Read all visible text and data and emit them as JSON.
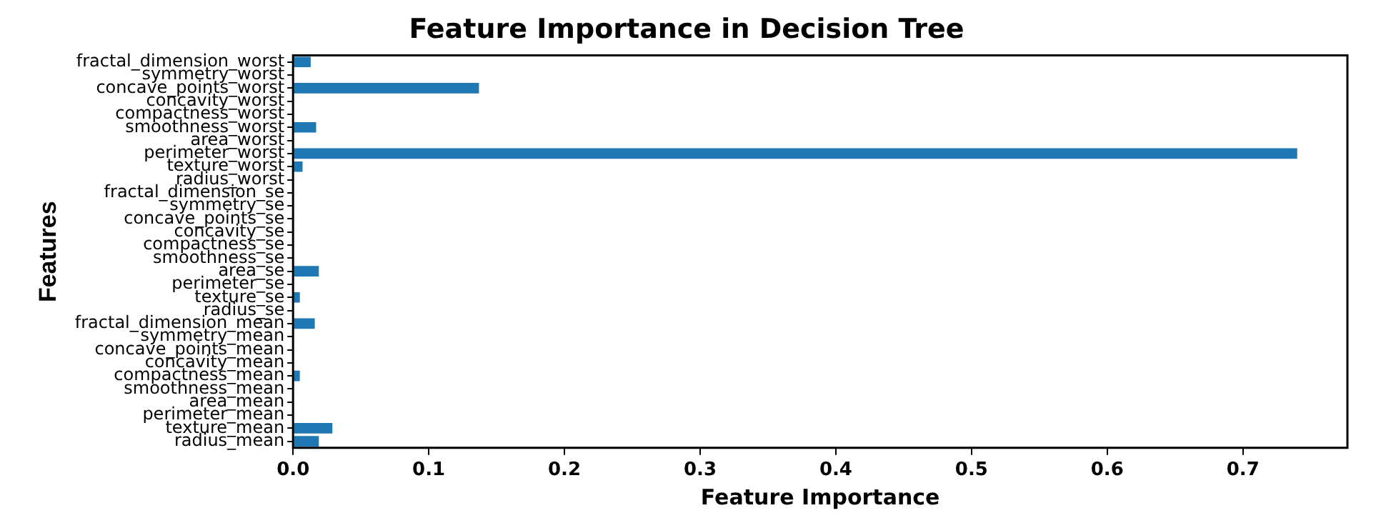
{
  "chart_data": {
    "type": "bar",
    "orientation": "horizontal",
    "title": "Feature Importance in Decision Tree",
    "xlabel": "Feature Importance",
    "ylabel": "Features",
    "categories": [
      "fractal_dimension_worst",
      "symmetry_worst",
      "concave_points_worst",
      "concavity_worst",
      "compactness_worst",
      "smoothness_worst",
      "area_worst",
      "perimeter_worst",
      "texture_worst",
      "radius_worst",
      "fractal_dimension_se",
      "symmetry_se",
      "concave_points_se",
      "concavity_se",
      "compactness_se",
      "smoothness_se",
      "area_se",
      "perimeter_se",
      "texture_se",
      "radius_se",
      "fractal_dimension_mean",
      "symmetry_mean",
      "concave_points_mean",
      "concavity_mean",
      "compactness_mean",
      "smoothness_mean",
      "area_mean",
      "perimeter_mean",
      "texture_mean",
      "radius_mean"
    ],
    "values": [
      0.013,
      0,
      0.137,
      0,
      0,
      0.017,
      0,
      0.74,
      0.007,
      0,
      0,
      0,
      0,
      0,
      0,
      0,
      0.019,
      0,
      0.005,
      0,
      0.016,
      0,
      0,
      0,
      0.005,
      0,
      0,
      0,
      0.029,
      0.019
    ],
    "color": "#1f77b4",
    "xlim": [
      0,
      0.777
    ],
    "xticks": [
      {
        "value": 0,
        "label": "0.0"
      },
      {
        "value": 0.1,
        "label": "0.1"
      },
      {
        "value": 0.2,
        "label": "0.2"
      },
      {
        "value": 0.3,
        "label": "0.3"
      },
      {
        "value": 0.4,
        "label": "0.4"
      },
      {
        "value": 0.5,
        "label": "0.5"
      },
      {
        "value": 0.6,
        "label": "0.6"
      },
      {
        "value": 0.7,
        "label": "0.7"
      }
    ],
    "grid": false,
    "legend": false
  }
}
